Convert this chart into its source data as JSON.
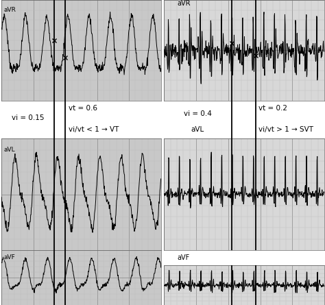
{
  "left_bg": "#c8c8c8",
  "right_bg": "#d8d8d8",
  "white_bg": "#ffffff",
  "grid_major_color": "#999999",
  "grid_minor_color": "#bbbbbb",
  "ecg_lw": 0.7,
  "vline_lw": 1.3,
  "figsize": [
    4.74,
    4.45
  ],
  "dpi": 100,
  "labels_left": [
    "aVR",
    "aVL",
    "aVF"
  ],
  "labels_right": [
    "aVR",
    "aVL",
    "aVF"
  ],
  "vi_left": "vi = 0.15",
  "vt_left": "vt = 0.6",
  "verdict_left": "vi/vt < 1 → VT",
  "vi_right": "vi = 0.4",
  "vt_right": "vt = 0.2",
  "verdict_right": "vi/vt > 1 → SVT",
  "avl_right_label": "aVL",
  "avf_right_label": "aVF",
  "label_fontsize": 6.5,
  "annot_fontsize": 7.5
}
